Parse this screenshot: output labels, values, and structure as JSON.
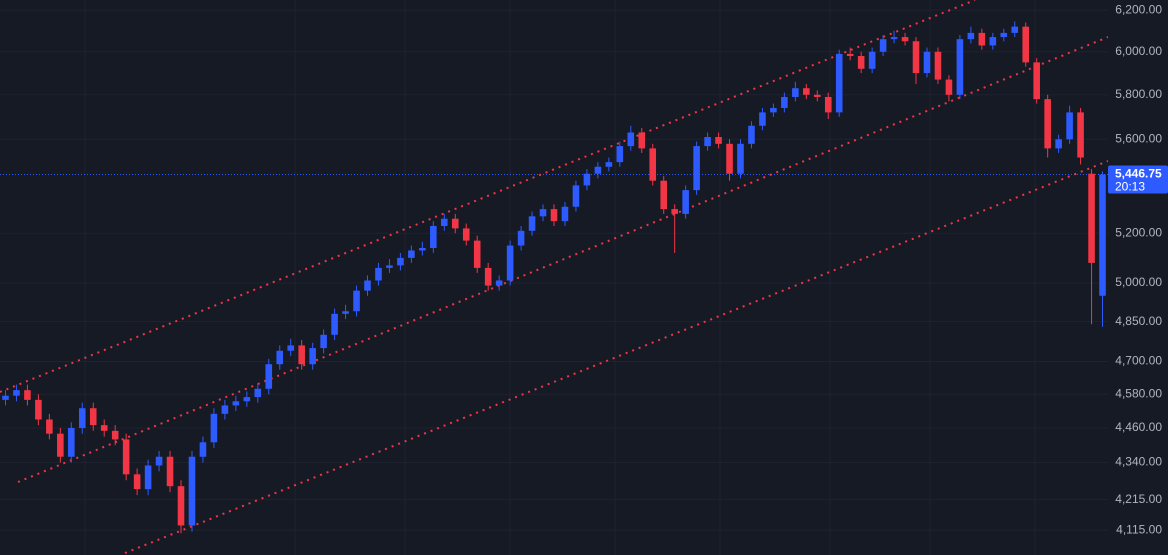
{
  "chart_data": {
    "type": "candlestick",
    "log_scale": true,
    "grid": true,
    "up_color": "#2e5bff",
    "down_color": "#f23645",
    "ylim": [
      4035,
      6250
    ],
    "yticks": [
      {
        "value": 6200,
        "label": "6,200.00"
      },
      {
        "value": 6000,
        "label": "6,000.00"
      },
      {
        "value": 5800,
        "label": "5,800.00"
      },
      {
        "value": 5600,
        "label": "5,600.00"
      },
      {
        "value": 5200,
        "label": "5,200.00"
      },
      {
        "value": 5000,
        "label": "5,000.00"
      },
      {
        "value": 4850,
        "label": "4,850.00"
      },
      {
        "value": 4700,
        "label": "4,700.00"
      },
      {
        "value": 4580,
        "label": "4,580.00"
      },
      {
        "value": 4460,
        "label": "4,460.00"
      },
      {
        "value": 4340,
        "label": "4,340.00"
      },
      {
        "value": 4215,
        "label": "4,215.00"
      },
      {
        "value": 4115,
        "label": "4,115.00"
      }
    ],
    "last_price": {
      "value": 5446.75,
      "label": "5,446.75"
    },
    "countdown": "20:13",
    "open": [
      4560,
      4575,
      4595,
      4560,
      4490,
      4440,
      4360,
      4460,
      4530,
      4470,
      4450,
      4420,
      4300,
      4250,
      4330,
      4360,
      4260,
      4130,
      4360,
      4410,
      4510,
      4540,
      4555,
      4570,
      4600,
      4690,
      4740,
      4760,
      4690,
      4750,
      4800,
      4880,
      4890,
      4970,
      5010,
      5060,
      5070,
      5100,
      5130,
      5140,
      5230,
      5260,
      5220,
      5170,
      5060,
      4990,
      5010,
      5150,
      5210,
      5270,
      5300,
      5250,
      5310,
      5400,
      5450,
      5480,
      5500,
      5570,
      5630,
      5560,
      5420,
      5300,
      5280,
      5380,
      5570,
      5610,
      5580,
      5450,
      5580,
      5660,
      5720,
      5740,
      5790,
      5830,
      5800,
      5790,
      5720,
      5990,
      5980,
      5920,
      6000,
      6060,
      6070,
      6050,
      5900,
      6000,
      5870,
      5800,
      6060,
      6090,
      6030,
      6070,
      6090,
      6120,
      5950,
      5780,
      5560,
      5600,
      5720,
      5450,
      4950
    ],
    "high": [
      4595,
      4615,
      4615,
      4580,
      4510,
      4460,
      4480,
      4550,
      4550,
      4490,
      4470,
      4440,
      4320,
      4350,
      4380,
      4380,
      4280,
      4380,
      4430,
      4530,
      4560,
      4575,
      4590,
      4620,
      4710,
      4760,
      4785,
      4780,
      4770,
      4820,
      4900,
      4915,
      4990,
      5030,
      5080,
      5095,
      5120,
      5150,
      5165,
      5250,
      5280,
      5280,
      5240,
      5190,
      5080,
      5030,
      5170,
      5230,
      5290,
      5320,
      5320,
      5330,
      5420,
      5470,
      5500,
      5520,
      5590,
      5660,
      5650,
      5580,
      5440,
      5320,
      5400,
      5590,
      5630,
      5630,
      5600,
      5600,
      5680,
      5740,
      5760,
      5810,
      5860,
      5850,
      5820,
      5810,
      6010,
      6020,
      6000,
      6020,
      6080,
      6100,
      6090,
      6070,
      6020,
      6020,
      5890,
      6080,
      6120,
      6110,
      6090,
      6110,
      6145,
      6140,
      5970,
      5800,
      5620,
      5750,
      5740,
      5470,
      5460
    ],
    "low": [
      4540,
      4555,
      4540,
      4470,
      4420,
      4340,
      4340,
      4440,
      4450,
      4430,
      4400,
      4280,
      4230,
      4230,
      4310,
      4240,
      4105,
      4110,
      4340,
      4390,
      4490,
      4520,
      4535,
      4550,
      4580,
      4670,
      4720,
      4670,
      4670,
      4730,
      4780,
      4860,
      4870,
      4950,
      4990,
      5040,
      5050,
      5080,
      5110,
      5120,
      5210,
      5200,
      5150,
      5040,
      4970,
      4970,
      4990,
      5130,
      5190,
      5250,
      5230,
      5230,
      5290,
      5380,
      5430,
      5460,
      5480,
      5550,
      5540,
      5400,
      5280,
      5120,
      5260,
      5360,
      5550,
      5560,
      5420,
      5430,
      5560,
      5640,
      5700,
      5720,
      5770,
      5780,
      5770,
      5690,
      5700,
      5960,
      5900,
      5900,
      5980,
      6040,
      6030,
      5850,
      5880,
      5850,
      5770,
      5780,
      6040,
      6010,
      6010,
      6050,
      6070,
      5930,
      5760,
      5520,
      5540,
      5580,
      5490,
      4840,
      4830
    ],
    "close": [
      4575,
      4595,
      4560,
      4490,
      4440,
      4360,
      4460,
      4530,
      4470,
      4450,
      4420,
      4300,
      4250,
      4330,
      4360,
      4260,
      4130,
      4360,
      4410,
      4510,
      4540,
      4555,
      4570,
      4600,
      4690,
      4740,
      4760,
      4690,
      4750,
      4800,
      4880,
      4890,
      4970,
      5010,
      5060,
      5070,
      5100,
      5130,
      5140,
      5230,
      5260,
      5220,
      5170,
      5060,
      4990,
      5010,
      5150,
      5210,
      5270,
      5300,
      5250,
      5310,
      5400,
      5450,
      5480,
      5500,
      5570,
      5630,
      5560,
      5420,
      5300,
      5280,
      5380,
      5570,
      5610,
      5580,
      5450,
      5580,
      5660,
      5720,
      5740,
      5790,
      5830,
      5800,
      5790,
      5720,
      5990,
      5980,
      5920,
      6000,
      6060,
      6070,
      6050,
      5900,
      6000,
      5870,
      5800,
      6060,
      6090,
      6030,
      6070,
      6090,
      6120,
      5950,
      5780,
      5560,
      5600,
      5720,
      5520,
      5080,
      5446.75
    ]
  }
}
